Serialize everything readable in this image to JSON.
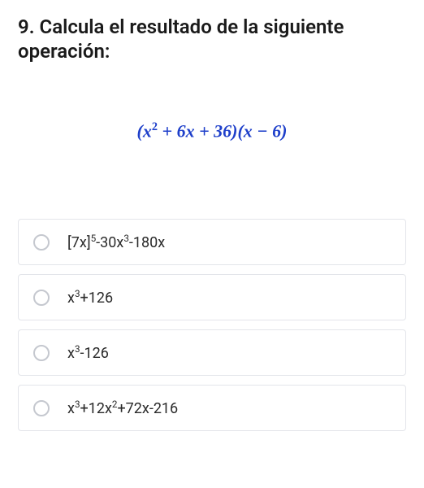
{
  "question": {
    "number": "9.",
    "text": "Calcula el resultado de la siguiente operación:"
  },
  "equation": {
    "html": "(<i>x</i><sup>2</sup> + 6<i>x</i> + 36)(<i>x</i> − 6)",
    "color": "#1e3fca"
  },
  "options": [
    {
      "html": "[7x]<sup>5</sup>-30x<sup>3</sup>-180x"
    },
    {
      "html": "x<sup>3</sup>+126"
    },
    {
      "html": "x<sup>3</sup>-126"
    },
    {
      "html": "x<sup>3</sup>+12x<sup>2</sup>+72x-216"
    }
  ],
  "styles": {
    "title_fontsize": 24,
    "equation_fontsize": 22,
    "option_fontsize": 18,
    "border_color": "#e3e5ea",
    "radio_border": "#c5c8cf",
    "text_color": "#1a1a1a",
    "background_color": "#ffffff"
  }
}
